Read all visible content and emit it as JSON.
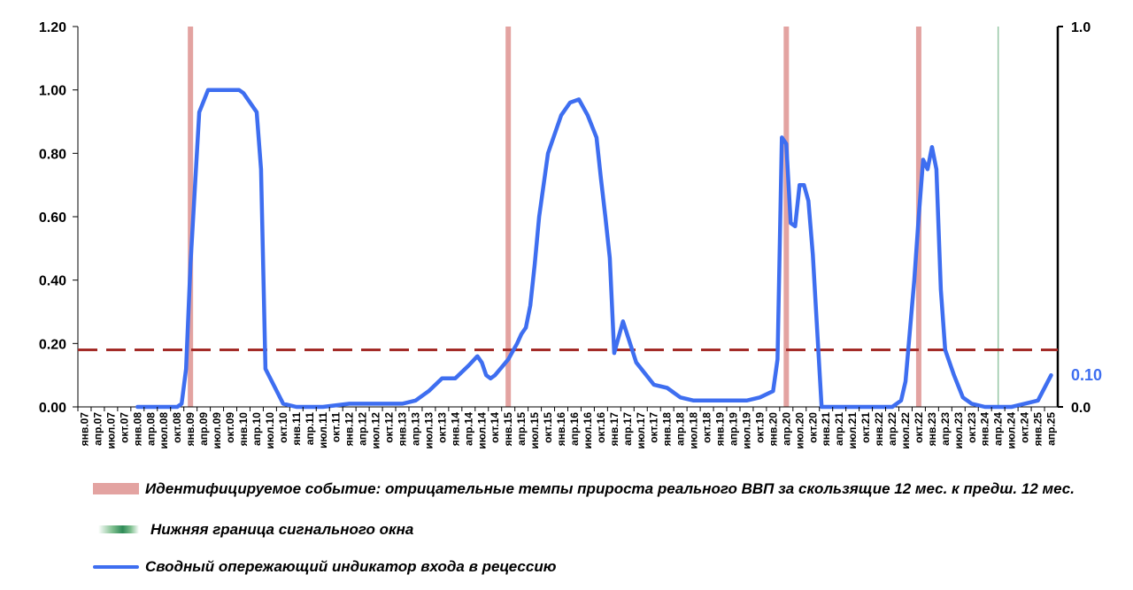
{
  "chart_data": {
    "type": "line",
    "title": "",
    "xlabel": "",
    "ylabel": "",
    "ylim_left": [
      0,
      1.2
    ],
    "ylim_right": [
      0,
      1.0
    ],
    "y_ticks_left": [
      "0.00",
      "0.20",
      "0.40",
      "0.60",
      "0.80",
      "1.00",
      "1.20"
    ],
    "y_ticks_right": [
      "0.0",
      "1.0"
    ],
    "x_tick_labels": [
      "янв.07",
      "апр.07",
      "июл.07",
      "окт.07",
      "янв.08",
      "апр.08",
      "июл.08",
      "окт.08",
      "янв.09",
      "апр.09",
      "июл.09",
      "окт.09",
      "янв.10",
      "апр.10",
      "июл.10",
      "окт.10",
      "янв.11",
      "апр.11",
      "июл.11",
      "окт.11",
      "янв.12",
      "апр.12",
      "июл.12",
      "окт.12",
      "янв.13",
      "апр.13",
      "июл.13",
      "окт.13",
      "янв.14",
      "апр.14",
      "июл.14",
      "окт.14",
      "янв.15",
      "апр.15",
      "июл.15",
      "окт.15",
      "янв.16",
      "апр.16",
      "июл.16",
      "окт.16",
      "янв.17",
      "апр.17",
      "июл.17",
      "окт.17",
      "янв.18",
      "апр.18",
      "июл.18",
      "окт.18",
      "янв.19",
      "апр.19",
      "июл.19",
      "окт.19",
      "янв.20",
      "апр.20",
      "июл.20",
      "окт.20",
      "янв.21",
      "апр.21",
      "июл.21",
      "окт.21",
      "янв.22",
      "апр.22",
      "июл.22",
      "окт.22",
      "янв.23",
      "апр.23",
      "июл.23",
      "окт.23",
      "янв.24",
      "апр.24",
      "июл.24",
      "окт.24",
      "янв.25",
      "апр.25"
    ],
    "threshold": 0.18,
    "event_bars": [
      "янв.09",
      "янв.15",
      "апр.20",
      "окт.22"
    ],
    "window_line": "апр.24",
    "end_value_label": "0.10",
    "series": [
      {
        "name": "Сводный опережающий индикатор входа в рецессию",
        "x": [
          "янв.08",
          "окт.08",
          "ноя.08",
          "дек.08",
          "янв.09",
          "мар.09",
          "май.09",
          "июл.09",
          "авг.09",
          "окт.09",
          "ноя.09",
          "дек.09",
          "янв.10",
          "апр.10",
          "май.10",
          "июн.10",
          "окт.10",
          "янв.11",
          "июл.11",
          "янв.12",
          "июл.12",
          "янв.13",
          "апр.13",
          "июл.13",
          "окт.13",
          "янв.14",
          "апр.14",
          "июн.14",
          "июл.14",
          "авг.14",
          "сен.14",
          "окт.14",
          "янв.15",
          "мар.15",
          "апр.15",
          "май.15",
          "июн.15",
          "июл.15",
          "авг.15",
          "окт.15",
          "янв.16",
          "мар.16",
          "май.16",
          "июл.16",
          "сен.16",
          "окт.16",
          "ноя.16",
          "дек.16",
          "янв.17",
          "мар.17",
          "июн.17",
          "окт.17",
          "янв.18",
          "апр.18",
          "июл.18",
          "окт.18",
          "янв.19",
          "апр.19",
          "июл.19",
          "окт.19",
          "янв.20",
          "фев.20",
          "мар.20",
          "апр.20",
          "май.20",
          "июн.20",
          "июл.20",
          "авг.20",
          "сен.20",
          "окт.20",
          "дек.20",
          "фев.21",
          "апр.21",
          "июл.21",
          "янв.22",
          "апр.22",
          "июн.22",
          "июл.22",
          "сен.22",
          "окт.22",
          "ноя.22",
          "дек.22",
          "янв.23",
          "фев.23",
          "мар.23",
          "апр.23",
          "июн.23",
          "авг.23",
          "окт.23",
          "янв.24",
          "июл.24",
          "янв.25",
          "апр.25"
        ],
        "values": [
          0.0,
          0.0,
          0.01,
          0.12,
          0.45,
          0.93,
          1.0,
          1.0,
          1.0,
          1.0,
          1.0,
          1.0,
          0.99,
          0.93,
          0.75,
          0.12,
          0.01,
          0.0,
          0.0,
          0.01,
          0.01,
          0.01,
          0.02,
          0.05,
          0.09,
          0.09,
          0.13,
          0.16,
          0.14,
          0.1,
          0.09,
          0.1,
          0.15,
          0.2,
          0.23,
          0.25,
          0.32,
          0.45,
          0.6,
          0.8,
          0.92,
          0.96,
          0.97,
          0.92,
          0.85,
          0.72,
          0.6,
          0.47,
          0.17,
          0.27,
          0.14,
          0.07,
          0.06,
          0.03,
          0.02,
          0.02,
          0.02,
          0.02,
          0.02,
          0.03,
          0.05,
          0.15,
          0.85,
          0.83,
          0.58,
          0.57,
          0.7,
          0.7,
          0.65,
          0.48,
          0.0,
          0.0,
          0.0,
          0.0,
          0.0,
          0.0,
          0.02,
          0.08,
          0.4,
          0.6,
          0.78,
          0.75,
          0.82,
          0.75,
          0.37,
          0.18,
          0.1,
          0.03,
          0.01,
          0.0,
          0.0,
          0.02,
          0.1
        ]
      }
    ],
    "colors": {
      "series": "#3e6ef0",
      "threshold": "#a32b27",
      "event_bar": "#e3a3a1",
      "window_line": "#96c7a5",
      "axis": "#000000",
      "end_label": "#3e6ef0"
    }
  },
  "legend": {
    "items": [
      {
        "text": "Идентифицируемое событие: отрицательные темпы прироста реального ВВП за скользящие 12 мес. к предш. 12 мес."
      },
      {
        "text": "Нижняя граница сигнального окна"
      },
      {
        "text": "Сводный опережающий индикатор входа в рецессию"
      }
    ]
  }
}
